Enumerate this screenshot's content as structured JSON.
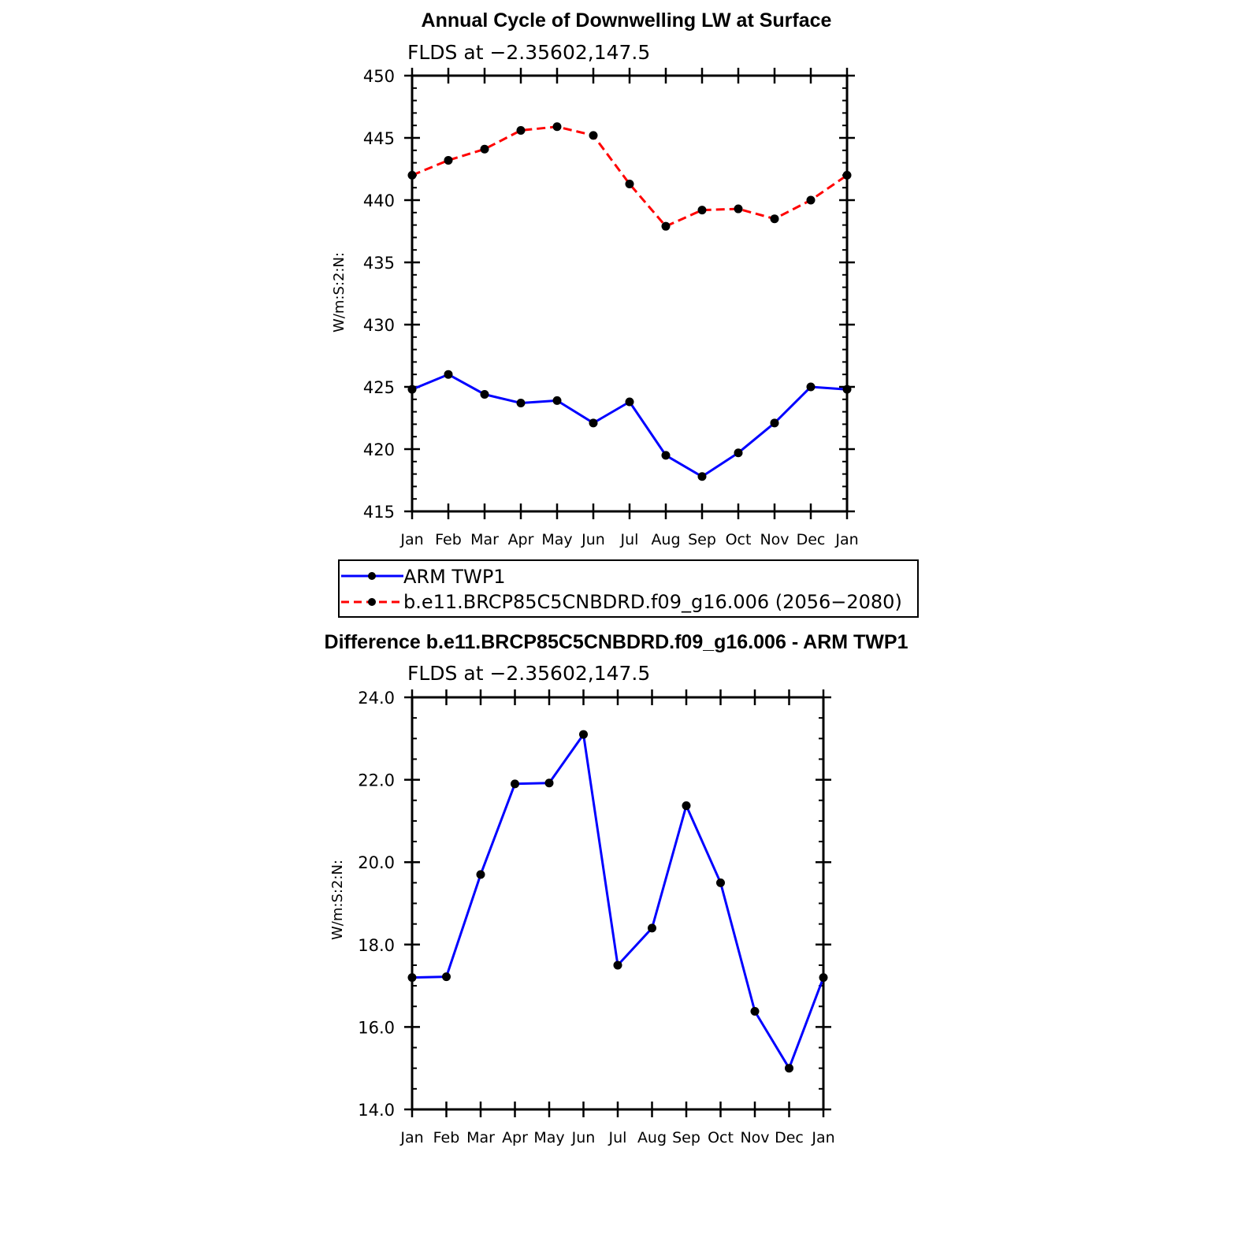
{
  "chart_data": [
    {
      "type": "line",
      "title": "Annual Cycle of Downwelling LW at Surface",
      "subtitle": "FLDS at −2.35602,147.5",
      "ylabel": "W/m:S:2:N:",
      "ylim": [
        415,
        450
      ],
      "yticks": [
        "415",
        "420",
        "425",
        "430",
        "435",
        "440",
        "445",
        "450"
      ],
      "categories": [
        "Jan",
        "Feb",
        "Mar",
        "Apr",
        "May",
        "Jun",
        "Jul",
        "Aug",
        "Sep",
        "Oct",
        "Nov",
        "Dec",
        "Jan"
      ],
      "legend": "below",
      "series": [
        {
          "name": "ARM  TWP1",
          "color": "#0000ff",
          "dash": "solid",
          "values": [
            424.8,
            426.0,
            424.4,
            423.7,
            423.9,
            422.1,
            423.8,
            419.5,
            417.8,
            419.7,
            422.1,
            425.0,
            424.8
          ]
        },
        {
          "name": "b.e11.BRCP85C5CNBDRD.f09_g16.006 (2056−2080)",
          "color": "#ff0000",
          "dash": "dashed",
          "values": [
            442.0,
            443.2,
            444.1,
            445.6,
            445.9,
            445.2,
            441.3,
            437.9,
            439.2,
            439.3,
            438.5,
            440.0,
            442.0
          ]
        }
      ]
    },
    {
      "type": "line",
      "title": "Difference b.e11.BRCP85C5CNBDRD.f09_g16.006 - ARM TWP1",
      "subtitle": "FLDS at −2.35602,147.5",
      "ylabel": "W/m:S:2:N:",
      "ylim": [
        14.0,
        24.0
      ],
      "yticks": [
        "14.0",
        "16.0",
        "18.0",
        "20.0",
        "22.0",
        "24.0"
      ],
      "categories": [
        "Jan",
        "Feb",
        "Mar",
        "Apr",
        "May",
        "Jun",
        "Jul",
        "Aug",
        "Sep",
        "Oct",
        "Nov",
        "Dec",
        "Jan"
      ],
      "series": [
        {
          "color": "#0000ff",
          "dash": "solid",
          "values": [
            17.2,
            17.22,
            19.7,
            21.9,
            21.92,
            23.1,
            17.5,
            18.4,
            21.37,
            19.5,
            16.38,
            15.0,
            17.2
          ]
        }
      ]
    }
  ]
}
